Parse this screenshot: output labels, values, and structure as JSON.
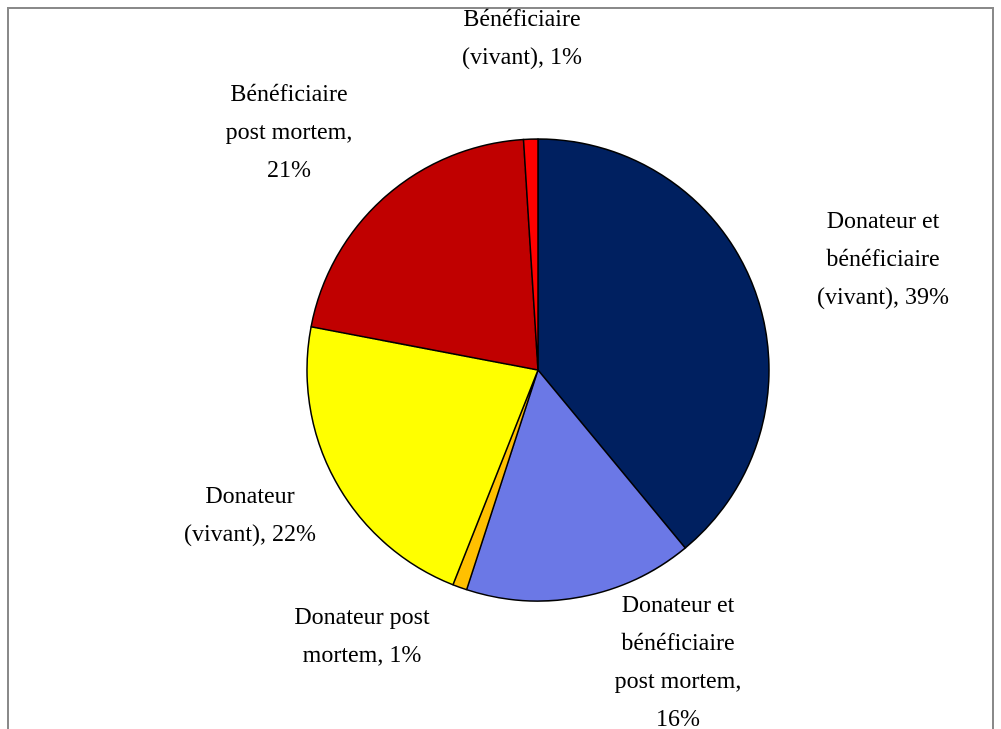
{
  "chart_data": {
    "type": "pie",
    "labels": [
      "Donateur et bénéficiaire (vivant), 39%",
      "Donateur et bénéficiaire post mortem, 16%",
      "Donateur post mortem, 1%",
      "Donateur (vivant), 22%",
      "Bénéficiaire post mortem, 21%",
      "Bénéficiaire (vivant), 1%"
    ],
    "values": [
      39,
      16,
      1,
      22,
      21,
      1
    ],
    "colors": [
      "#002060",
      "#6b78e6",
      "#ffc000",
      "#ffff00",
      "#c00000",
      "#ff0000"
    ]
  }
}
